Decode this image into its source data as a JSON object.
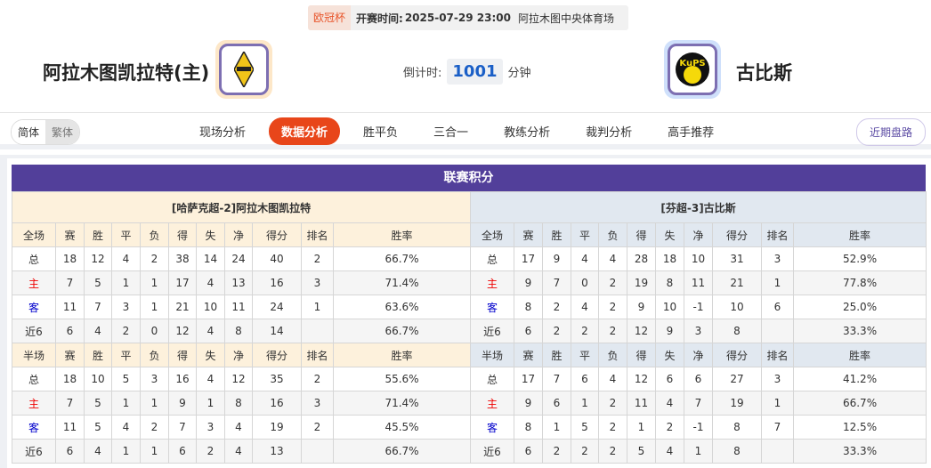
{
  "header": {
    "competition": "欧冠杯",
    "kickoff_label": "开赛时间:",
    "kickoff": "2025-07-29 23:00",
    "venue": "阿拉木图中央体育场"
  },
  "home_team": {
    "name": "阿拉木图凯拉特(主)",
    "accent": "#fde7c8"
  },
  "away_team": {
    "name": "古比斯",
    "accent": "#cfe0fb"
  },
  "countdown": {
    "label": "倒计时:",
    "value": "1001",
    "unit": "分钟"
  },
  "lang": {
    "simplified": "简体",
    "traditional": "繁体"
  },
  "tabs": [
    "现场分析",
    "数据分析",
    "胜平负",
    "三合一",
    "教练分析",
    "裁判分析",
    "高手推荐"
  ],
  "active_tab": "数据分析",
  "recent_button": "近期盘路",
  "standings": {
    "title": "联赛积分",
    "columns": [
      "赛",
      "胜",
      "平",
      "负",
      "得",
      "失",
      "净",
      "得分",
      "排名",
      "胜率"
    ],
    "full_label": "全场",
    "half_label": "半场",
    "home": {
      "title": "[哈萨克超-2]阿拉木图凯拉特",
      "full": [
        [
          "总",
          "18",
          "12",
          "4",
          "2",
          "38",
          "14",
          "24",
          "40",
          "2",
          "66.7%"
        ],
        [
          "主",
          "7",
          "5",
          "1",
          "1",
          "17",
          "4",
          "13",
          "16",
          "3",
          "71.4%"
        ],
        [
          "客",
          "11",
          "7",
          "3",
          "1",
          "21",
          "10",
          "11",
          "24",
          "1",
          "63.6%"
        ],
        [
          "近6",
          "6",
          "4",
          "2",
          "0",
          "12",
          "4",
          "8",
          "14",
          "",
          "66.7%"
        ]
      ],
      "half": [
        [
          "总",
          "18",
          "10",
          "5",
          "3",
          "16",
          "4",
          "12",
          "35",
          "2",
          "55.6%"
        ],
        [
          "主",
          "7",
          "5",
          "1",
          "1",
          "9",
          "1",
          "8",
          "16",
          "3",
          "71.4%"
        ],
        [
          "客",
          "11",
          "5",
          "4",
          "2",
          "7",
          "3",
          "4",
          "19",
          "2",
          "45.5%"
        ],
        [
          "近6",
          "6",
          "4",
          "1",
          "1",
          "6",
          "2",
          "4",
          "13",
          "",
          "66.7%"
        ]
      ]
    },
    "away": {
      "title": "[芬超-3]古比斯",
      "full": [
        [
          "总",
          "17",
          "9",
          "4",
          "4",
          "28",
          "18",
          "10",
          "31",
          "3",
          "52.9%"
        ],
        [
          "主",
          "9",
          "7",
          "0",
          "2",
          "19",
          "8",
          "11",
          "21",
          "1",
          "77.8%"
        ],
        [
          "客",
          "8",
          "2",
          "4",
          "2",
          "9",
          "10",
          "-1",
          "10",
          "6",
          "25.0%"
        ],
        [
          "近6",
          "6",
          "2",
          "2",
          "2",
          "12",
          "9",
          "3",
          "8",
          "",
          "33.3%"
        ]
      ],
      "half": [
        [
          "总",
          "17",
          "7",
          "6",
          "4",
          "12",
          "6",
          "6",
          "27",
          "3",
          "41.2%"
        ],
        [
          "主",
          "9",
          "6",
          "1",
          "2",
          "11",
          "4",
          "7",
          "19",
          "1",
          "66.7%"
        ],
        [
          "客",
          "8",
          "1",
          "5",
          "2",
          "1",
          "2",
          "-1",
          "8",
          "7",
          "12.5%"
        ],
        [
          "近6",
          "6",
          "2",
          "2",
          "2",
          "5",
          "4",
          "1",
          "8",
          "",
          "33.3%"
        ]
      ]
    }
  }
}
